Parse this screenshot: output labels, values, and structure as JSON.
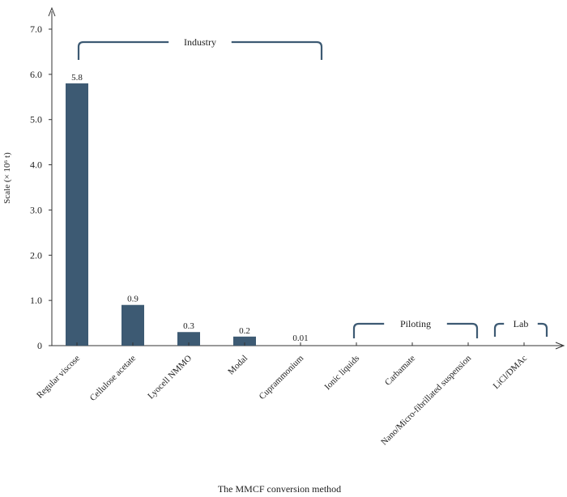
{
  "chart_data": {
    "type": "bar",
    "title": "",
    "xlabel": "The MMCF conversion method",
    "ylabel": "Scale (× 10⁶ t)",
    "ylim": [
      0,
      7.0
    ],
    "yticks": [
      "0",
      "1.0",
      "2.0",
      "3.0",
      "4.0",
      "5.0",
      "6.0",
      "7.0"
    ],
    "ytick_values": [
      0,
      1,
      2,
      3,
      4,
      5,
      6,
      7
    ],
    "categories": [
      "Regular viscose",
      "Cellulose acetate",
      "Lyocell NMMO",
      "Modal",
      "Cuprammonium",
      "Ionic liquids",
      "Carbamate",
      "Nano/Micro-fibrillated suspension",
      "LiCl/DMAc"
    ],
    "values": [
      5.8,
      0.9,
      0.3,
      0.2,
      0.01,
      0,
      0,
      0,
      0
    ],
    "data_labels": [
      "5.8",
      "0.9",
      "0.3",
      "0.2",
      "0.01",
      "",
      "",
      "",
      ""
    ],
    "groups": [
      {
        "label": "Industry",
        "from": 0,
        "to": 4
      },
      {
        "label": "Piloting",
        "from": 5,
        "to": 7
      },
      {
        "label": "Lab",
        "from": 8,
        "to": 8
      }
    ],
    "bar_color": "#3d5a73",
    "bracket_color": "#3d5a73",
    "grid": false
  }
}
